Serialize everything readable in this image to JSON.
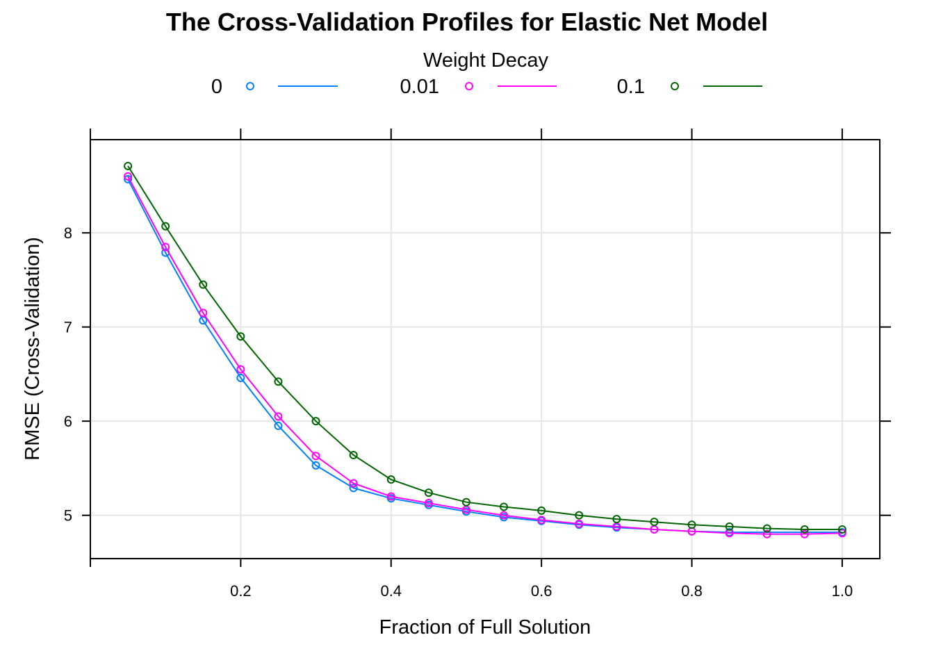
{
  "chart_data": {
    "type": "line",
    "title": "The Cross-Validation Profiles for Elastic Net Model",
    "xlabel": "Fraction of Full Solution",
    "ylabel": "RMSE (Cross-Validation)",
    "legend_title": "Weight Decay",
    "legend_position": "top",
    "grid": true,
    "x": [
      0.05,
      0.1,
      0.15,
      0.2,
      0.25,
      0.3,
      0.35,
      0.4,
      0.45,
      0.5,
      0.55,
      0.6,
      0.65,
      0.7,
      0.75,
      0.8,
      0.85,
      0.9,
      0.95,
      1.0
    ],
    "xlim": [
      0.0,
      1.05
    ],
    "ylim": [
      4.54,
      8.99
    ],
    "x_ticks": [
      "0.2",
      "0.4",
      "0.6",
      "0.8",
      "1.0"
    ],
    "x_tick_values": [
      0.2,
      0.4,
      0.6,
      0.8,
      1.0
    ],
    "y_ticks": [
      "5",
      "6",
      "7",
      "8"
    ],
    "y_tick_values": [
      5,
      6,
      7,
      8
    ],
    "series": [
      {
        "name": "0",
        "color": "#0080FF",
        "values": [
          8.57,
          7.79,
          7.07,
          6.46,
          5.95,
          5.53,
          5.29,
          5.18,
          5.11,
          5.04,
          4.98,
          4.94,
          4.9,
          4.87,
          4.85,
          4.83,
          4.82,
          null,
          null,
          4.82
        ]
      },
      {
        "name": "0.01",
        "color": "#FF00FF",
        "values": [
          8.6,
          7.85,
          7.15,
          6.55,
          6.05,
          5.63,
          5.34,
          5.2,
          5.13,
          5.06,
          5.0,
          4.95,
          4.91,
          4.88,
          4.85,
          4.83,
          4.81,
          4.8,
          4.8,
          4.81
        ]
      },
      {
        "name": "0.1",
        "color": "#006400",
        "values": [
          8.71,
          8.07,
          7.45,
          6.9,
          6.42,
          6.0,
          5.64,
          5.38,
          5.24,
          5.14,
          5.09,
          5.05,
          5.0,
          4.96,
          4.93,
          4.9,
          4.88,
          4.86,
          4.85,
          4.85
        ]
      }
    ]
  }
}
